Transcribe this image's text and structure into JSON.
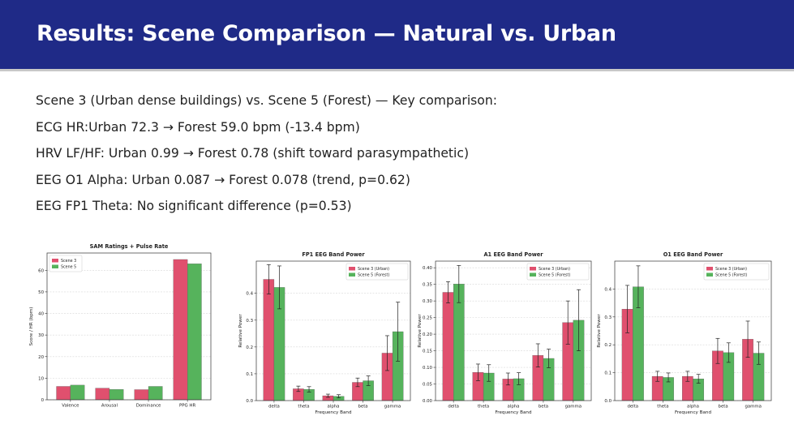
{
  "slide": {
    "title": "Results: Scene Comparison — Natural vs. Urban",
    "bullets": [
      "Scene 3 (Urban dense buildings) vs. Scene 5 (Forest) — Key comparison:",
      "ECG HR:Urban 72.3 → Forest 59.0 bpm (-13.4 bpm)",
      "HRV LF/HF: Urban 0.99 → Forest 0.78 (shift toward parasympathetic)",
      "EEG O1 Alpha: Urban 0.087 → Forest 0.078 (trend, p=0.62)",
      "EEG FP1 Theta: No significant difference (p=0.53)"
    ]
  },
  "colors": {
    "header_bg": "#1f2a87",
    "series1": "#e0506e",
    "series2": "#56b35c",
    "error_bar": "#222222"
  },
  "chart_data": [
    {
      "type": "bar",
      "title": "SAM Ratings + Pulse Rate",
      "xlabel": "",
      "ylabel": "Score / HR (bpm)",
      "categories": [
        "Valence",
        "Arousal",
        "Dominance",
        "PPG HR"
      ],
      "series": [
        {
          "name": "Scene 3",
          "values": [
            6.2,
            5.4,
            4.7,
            65.0
          ]
        },
        {
          "name": "Scene 5",
          "values": [
            6.8,
            4.8,
            6.2,
            63.0
          ]
        }
      ],
      "ylim": [
        0,
        68
      ],
      "yticks": [
        0,
        10,
        20,
        30,
        40,
        50,
        60
      ],
      "legend": "top-left",
      "grid": true
    },
    {
      "type": "bar",
      "title": "FP1 EEG Band Power",
      "xlabel": "Frequency Band",
      "ylabel": "Relative Power",
      "categories": [
        "delta",
        "theta",
        "alpha",
        "beta",
        "gamma"
      ],
      "series": [
        {
          "name": "Scene 3 (Urban)",
          "values": [
            0.452,
            0.044,
            0.018,
            0.068,
            0.177
          ],
          "errors": [
            0.055,
            0.01,
            0.006,
            0.016,
            0.065
          ]
        },
        {
          "name": "Scene 5 (Forest)",
          "values": [
            0.422,
            0.042,
            0.016,
            0.074,
            0.257
          ],
          "errors": [
            0.08,
            0.01,
            0.006,
            0.018,
            0.11
          ]
        }
      ],
      "ylim": [
        0,
        0.52
      ],
      "yticks": [
        0.0,
        0.1,
        0.2,
        0.3,
        0.4
      ],
      "legend": "top-right",
      "grid": true
    },
    {
      "type": "bar",
      "title": "A1 EEG Band Power",
      "xlabel": "Frequency Band",
      "ylabel": "Relative Power",
      "categories": [
        "delta",
        "theta",
        "alpha",
        "beta",
        "gamma"
      ],
      "series": [
        {
          "name": "Scene 3 (Urban)",
          "values": [
            0.326,
            0.085,
            0.065,
            0.136,
            0.235
          ],
          "errors": [
            0.032,
            0.025,
            0.018,
            0.035,
            0.065
          ]
        },
        {
          "name": "Scene 5 (Forest)",
          "values": [
            0.351,
            0.083,
            0.066,
            0.127,
            0.242
          ],
          "errors": [
            0.056,
            0.025,
            0.018,
            0.028,
            0.092
          ]
        }
      ],
      "ylim": [
        0,
        0.42
      ],
      "yticks": [
        0.0,
        0.05,
        0.1,
        0.15,
        0.2,
        0.25,
        0.3,
        0.35,
        0.4
      ],
      "legend": "top-right",
      "grid": true
    },
    {
      "type": "bar",
      "title": "O1 EEG Band Power",
      "xlabel": "Frequency Band",
      "ylabel": "Relative Power",
      "categories": [
        "delta",
        "theta",
        "alpha",
        "beta",
        "gamma"
      ],
      "series": [
        {
          "name": "Scene 3 (Urban)",
          "values": [
            0.328,
            0.087,
            0.087,
            0.178,
            0.22
          ],
          "errors": [
            0.085,
            0.018,
            0.018,
            0.045,
            0.065
          ]
        },
        {
          "name": "Scene 5 (Forest)",
          "values": [
            0.408,
            0.083,
            0.078,
            0.172,
            0.17
          ],
          "errors": [
            0.075,
            0.016,
            0.016,
            0.035,
            0.04
          ]
        }
      ],
      "ylim": [
        0,
        0.5
      ],
      "yticks": [
        0.0,
        0.1,
        0.2,
        0.3,
        0.4
      ],
      "legend": "top-right",
      "grid": true
    }
  ]
}
